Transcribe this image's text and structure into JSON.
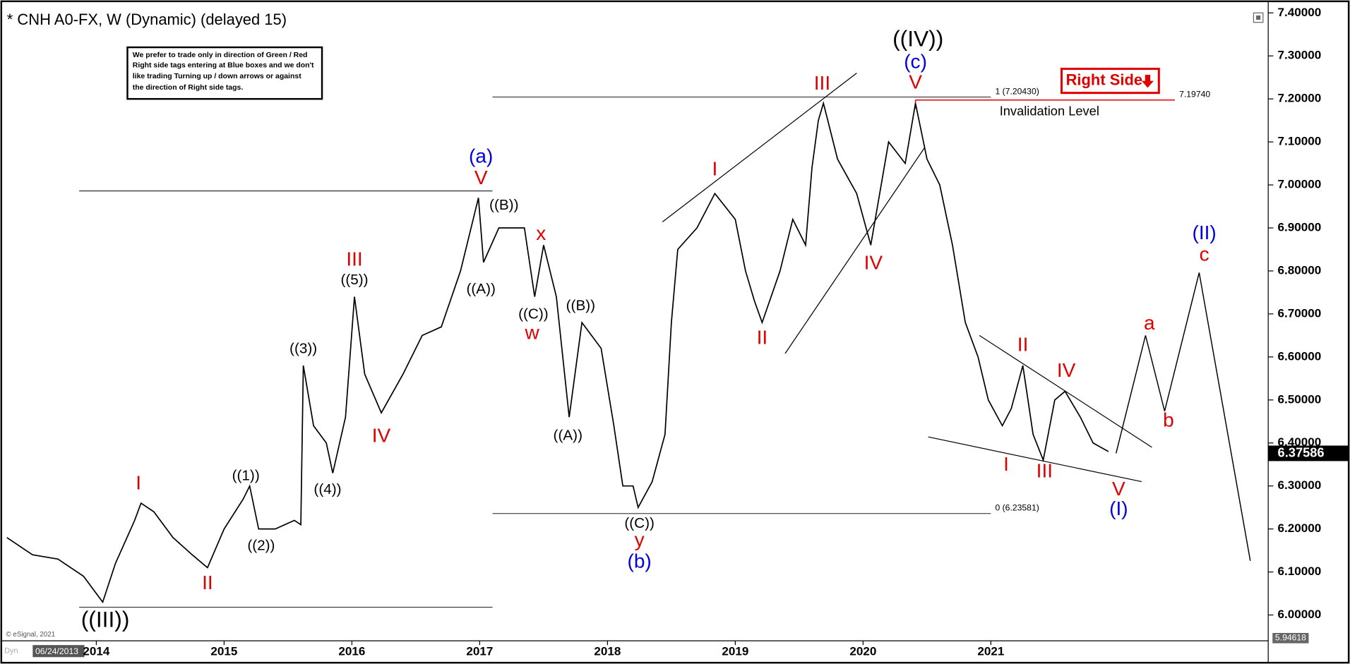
{
  "chart_data": {
    "type": "line",
    "title": "* CNH A0-FX, W (Dynamic) (delayed 15)",
    "note": [
      "We prefer to trade only in direction of Green / Red",
      "Right side tags entering at Blue boxes and we don't",
      "like trading Turning up / down arrows or against",
      "the direction of Right side tags."
    ],
    "right_side_tag": "Right Side",
    "copyright": "© eSignal, 2021",
    "start_date": "06/24/2013",
    "mode": "Dyn",
    "color": "#000000",
    "x": [
      2013.3,
      2013.5,
      2013.7,
      2013.9,
      2014.05,
      2014.15,
      2014.3,
      2014.35,
      2014.45,
      2014.6,
      2014.75,
      2014.87,
      2015.0,
      2015.15,
      2015.2,
      2015.27,
      2015.4,
      2015.55,
      2015.6,
      2015.62,
      2015.7,
      2015.8,
      2015.85,
      2015.95,
      2016.02,
      2016.1,
      2016.23,
      2016.4,
      2016.55,
      2016.7,
      2016.85,
      2016.99,
      2017.03,
      2017.15,
      2017.35,
      2017.43,
      2017.5,
      2017.6,
      2017.7,
      2017.8,
      2017.95,
      2018.05,
      2018.12,
      2018.2,
      2018.24,
      2018.35,
      2018.45,
      2018.5,
      2018.55,
      2018.7,
      2018.84,
      2019.0,
      2019.08,
      2019.15,
      2019.21,
      2019.35,
      2019.45,
      2019.55,
      2019.6,
      2019.65,
      2019.69,
      2019.8,
      2019.95,
      2020.06,
      2020.2,
      2020.33,
      2020.41,
      2020.5,
      2020.6,
      2020.7,
      2020.8,
      2020.9,
      2020.98,
      2021.09,
      2021.16,
      2021.25,
      2021.33,
      2021.41,
      2021.5,
      2021.58,
      2021.7,
      2021.8,
      2021.92
    ],
    "values": [
      6.18,
      6.14,
      6.13,
      6.09,
      6.03,
      6.12,
      6.22,
      6.26,
      6.24,
      6.18,
      6.14,
      6.11,
      6.2,
      6.27,
      6.3,
      6.2,
      6.2,
      6.22,
      6.21,
      6.58,
      6.44,
      6.4,
      6.33,
      6.46,
      6.74,
      6.56,
      6.47,
      6.56,
      6.65,
      6.67,
      6.8,
      6.97,
      6.82,
      6.9,
      6.9,
      6.74,
      6.86,
      6.74,
      6.46,
      6.68,
      6.62,
      6.44,
      6.3,
      6.3,
      6.25,
      6.31,
      6.42,
      6.68,
      6.85,
      6.9,
      6.98,
      6.92,
      6.8,
      6.73,
      6.68,
      6.8,
      6.92,
      6.86,
      7.04,
      7.15,
      7.19,
      7.06,
      6.98,
      6.86,
      7.1,
      7.05,
      7.19,
      7.06,
      7.0,
      6.86,
      6.68,
      6.6,
      6.5,
      6.44,
      6.48,
      6.58,
      6.42,
      6.36,
      6.5,
      6.52,
      6.46,
      6.4,
      6.38
    ],
    "xlim": [
      2013.28,
      2023.15
    ],
    "xticks": [
      2014,
      2015,
      2016,
      2017,
      2018,
      2019,
      2020,
      2021
    ],
    "ylim": [
      5.95,
      7.414
    ],
    "yticks": [
      {
        "value": 6,
        "label": "6.00000"
      },
      {
        "value": 6.1,
        "label": "6.10000"
      },
      {
        "value": 6.2,
        "label": "6.20000"
      },
      {
        "value": 6.3,
        "label": "6.30000"
      },
      {
        "value": 6.4,
        "label": "6.40000"
      },
      {
        "value": 6.5,
        "label": "6.50000"
      },
      {
        "value": 6.6,
        "label": "6.60000"
      },
      {
        "value": 6.7,
        "label": "6.70000"
      },
      {
        "value": 6.8,
        "label": "6.80000"
      },
      {
        "value": 6.9,
        "label": "6.90000"
      },
      {
        "value": 7,
        "label": "7.00000"
      },
      {
        "value": 7.1,
        "label": "7.10000"
      },
      {
        "value": 7.2,
        "label": "7.20000"
      },
      {
        "value": 7.3,
        "label": "7.30000"
      },
      {
        "value": 7.4,
        "label": "7.40000"
      }
    ],
    "grid": false,
    "last_price": 6.37586,
    "axis_bottom_value": 5.94618,
    "levels": [
      {
        "value": 7.2043,
        "label": "1 (7.20430)",
        "x": [
          2017.1,
          2021.0
        ]
      },
      {
        "value": 6.23581,
        "label": "0 (6.23581)",
        "x": [
          2017.1,
          2021.0
        ]
      }
    ],
    "invalidation": {
      "value": 7.1974,
      "label": "7.19740",
      "text": "Invalidation Level",
      "x": [
        2020.41,
        2022.44
      ],
      "color": "#e00000"
    },
    "horizontal_lines": [
      {
        "value": 6.986,
        "x": [
          2013.866,
          2017.1
        ]
      },
      {
        "value": 6.018,
        "x": [
          2013.866,
          2017.1
        ]
      }
    ],
    "trendlines": [
      {
        "x": [
          2018.43,
          2019.95
        ],
        "y": [
          6.914,
          7.26
        ]
      },
      {
        "x": [
          2019.39,
          2020.48
        ],
        "y": [
          6.608,
          7.086
        ]
      },
      {
        "x": [
          2020.91,
          2022.26
        ],
        "y": [
          6.65,
          6.39
        ]
      },
      {
        "x": [
          2020.51,
          2022.18
        ],
        "y": [
          6.414,
          6.31
        ]
      }
    ],
    "projection": {
      "x": [
        2021.98,
        2022.21,
        2022.36,
        2022.63,
        2023.03
      ],
      "values": [
        6.376,
        6.65,
        6.474,
        6.796,
        6.126
      ]
    },
    "wave_labels": [
      {
        "text": "((III))",
        "x": 2014.07,
        "y": 5.986,
        "color": "#000000",
        "emphasis": true
      },
      {
        "text": "I",
        "x": 2014.33,
        "y": 6.304,
        "color": "#e00000"
      },
      {
        "text": "II",
        "x": 2014.87,
        "y": 6.072,
        "color": "#e00000"
      },
      {
        "text": "((1))",
        "x": 2015.17,
        "y": 6.322,
        "color": "#000000"
      },
      {
        "text": "((2))",
        "x": 2015.29,
        "y": 6.16,
        "color": "#000000"
      },
      {
        "text": "((3))",
        "x": 2015.62,
        "y": 6.618,
        "color": "#000000"
      },
      {
        "text": "((4))",
        "x": 2015.81,
        "y": 6.29,
        "color": "#000000"
      },
      {
        "text": "((5))",
        "x": 2016.02,
        "y": 6.778,
        "color": "#000000"
      },
      {
        "text": "III",
        "x": 2016.02,
        "y": 6.824,
        "color": "#e00000"
      },
      {
        "text": "IV",
        "x": 2016.23,
        "y": 6.414,
        "color": "#e00000"
      },
      {
        "text": "(a)",
        "x": 2017.01,
        "y": 7.064,
        "color": "#0000e0"
      },
      {
        "text": "V",
        "x": 2017.01,
        "y": 7.014,
        "color": "#e00000"
      },
      {
        "text": "((B))",
        "x": 2017.19,
        "y": 6.952,
        "color": "#000000"
      },
      {
        "text": "((A))",
        "x": 2017.01,
        "y": 6.756,
        "color": "#000000"
      },
      {
        "text": "x",
        "x": 2017.48,
        "y": 6.884,
        "color": "#e00000"
      },
      {
        "text": "((C))",
        "x": 2017.42,
        "y": 6.698,
        "color": "#000000"
      },
      {
        "text": "w",
        "x": 2017.41,
        "y": 6.654,
        "color": "#e00000"
      },
      {
        "text": "((B))",
        "x": 2017.79,
        "y": 6.718,
        "color": "#000000"
      },
      {
        "text": "((A))",
        "x": 2017.69,
        "y": 6.416,
        "color": "#000000"
      },
      {
        "text": "((C))",
        "x": 2018.25,
        "y": 6.212,
        "color": "#000000"
      },
      {
        "text": "y",
        "x": 2018.25,
        "y": 6.172,
        "color": "#e00000"
      },
      {
        "text": "(b)",
        "x": 2018.25,
        "y": 6.122,
        "color": "#0000e0"
      },
      {
        "text": "I",
        "x": 2018.84,
        "y": 7.034,
        "color": "#e00000"
      },
      {
        "text": "II",
        "x": 2019.21,
        "y": 6.642,
        "color": "#e00000"
      },
      {
        "text": "III",
        "x": 2019.68,
        "y": 7.234,
        "color": "#e00000"
      },
      {
        "text": "((IV))",
        "x": 2020.43,
        "y": 7.336,
        "color": "#000000",
        "emphasis": true
      },
      {
        "text": "(c)",
        "x": 2020.41,
        "y": 7.284,
        "color": "#0000e0"
      },
      {
        "text": "V",
        "x": 2020.41,
        "y": 7.236,
        "color": "#e00000"
      },
      {
        "text": "IV",
        "x": 2020.08,
        "y": 6.816,
        "color": "#e00000"
      },
      {
        "text": "I",
        "x": 2021.12,
        "y": 6.348,
        "color": "#e00000"
      },
      {
        "text": "II",
        "x": 2021.25,
        "y": 6.626,
        "color": "#e00000"
      },
      {
        "text": "III",
        "x": 2021.42,
        "y": 6.332,
        "color": "#e00000"
      },
      {
        "text": "IV",
        "x": 2021.59,
        "y": 6.566,
        "color": "#e00000"
      },
      {
        "text": "V",
        "x": 2022.0,
        "y": 6.29,
        "color": "#e00000"
      },
      {
        "text": "(I)",
        "x": 2022.0,
        "y": 6.244,
        "color": "#0000e0"
      },
      {
        "text": "a",
        "x": 2022.24,
        "y": 6.676,
        "color": "#e00000"
      },
      {
        "text": "b",
        "x": 2022.39,
        "y": 6.45,
        "color": "#e00000"
      },
      {
        "text": "(II)",
        "x": 2022.67,
        "y": 6.886,
        "color": "#0000e0"
      },
      {
        "text": "c",
        "x": 2022.67,
        "y": 6.836,
        "color": "#e00000"
      }
    ]
  }
}
